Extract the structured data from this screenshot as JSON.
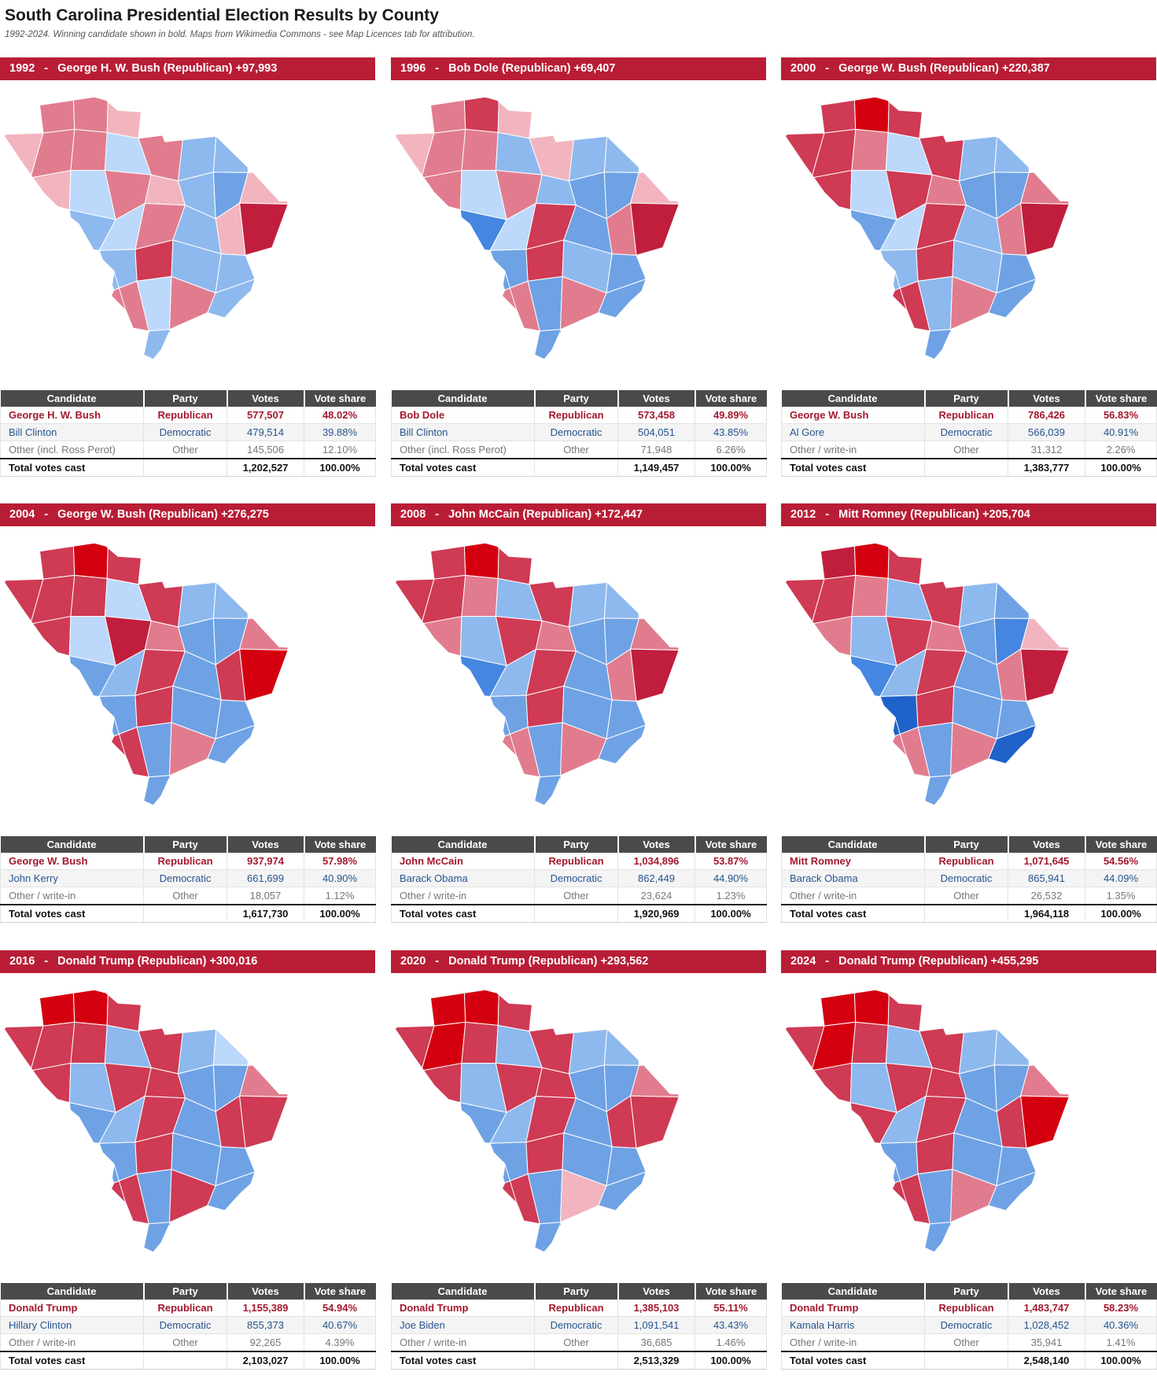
{
  "page": {
    "title": "South Carolina Presidential Election Results by County",
    "subtitle": "1992-2024. Winning candidate shown in bold. Maps from Wikimedia Commons - see Map Licences tab for attribution."
  },
  "table_headers": {
    "candidate": "Candidate",
    "party": "Party",
    "votes": "Votes",
    "share": "Vote share"
  },
  "colors": {
    "banner": "#b91d35",
    "header": "#4a4a4a",
    "rep_text": "#a3182d",
    "dem_text": "#27548f",
    "rep_scale": [
      "#f2b4be",
      "#e17c8e",
      "#cf3a54",
      "#c01e3c",
      "#d40010"
    ],
    "dem_scale": [
      "#bcd8fb",
      "#8db9ee",
      "#6ea2e5",
      "#4586e0",
      "#1f62c9"
    ]
  },
  "elections": [
    {
      "year": "1992",
      "sep": "-",
      "headline": "George H. W. Bush (Republican) +97,993",
      "map_shades": [
        "r2",
        "r2",
        "r1",
        "r1",
        "r2",
        "r2",
        "d1",
        "r2",
        "d2",
        "d2",
        "r1",
        "d1",
        "r2",
        "r1",
        "d2",
        "d3",
        "r1",
        "d2",
        "d1",
        "r2",
        "d2",
        "r1",
        "r4",
        "d2",
        "r3",
        "d2",
        "d2",
        "r2",
        "d1",
        "r2",
        "d2",
        "d2",
        "d1",
        "d2",
        "r2",
        "d3",
        "d1",
        "r1",
        "d2",
        "d2",
        "d1",
        "d2",
        "r1",
        "d2",
        "d2",
        "r1"
      ],
      "rows": [
        {
          "cls": "rep",
          "candidate": "George H. W. Bush",
          "party": "Republican",
          "votes": "577,507",
          "share": "48.02%"
        },
        {
          "cls": "dem",
          "candidate": "Bill Clinton",
          "party": "Democratic",
          "votes": "479,514",
          "share": "39.88%"
        },
        {
          "cls": "oth",
          "candidate": "Other (incl. Ross Perot)",
          "party": "Other",
          "votes": "145,506",
          "share": "12.10%"
        },
        {
          "cls": "tot",
          "candidate": "Total votes cast",
          "party": "",
          "votes": "1,202,527",
          "share": "100.00%"
        }
      ]
    },
    {
      "year": "1996",
      "sep": "-",
      "headline": "Bob Dole (Republican) +69,407",
      "map_shades": [
        "r2",
        "r3",
        "r1",
        "r1",
        "r2",
        "r2",
        "d2",
        "r1",
        "d2",
        "d2",
        "r2",
        "d1",
        "r2",
        "d2",
        "d3",
        "d3",
        "r1",
        "d4",
        "d1",
        "r3",
        "d3",
        "r2",
        "r4",
        "d3",
        "r3",
        "d2",
        "d3",
        "r2",
        "d3",
        "r2",
        "d3",
        "d3",
        "d2",
        "d3",
        "r2",
        "d4",
        "d3",
        "r2",
        "d2",
        "d3",
        "d2",
        "d3",
        "r2",
        "d3",
        "d2",
        "r1"
      ],
      "rows": [
        {
          "cls": "rep",
          "candidate": "Bob Dole",
          "party": "Republican",
          "votes": "573,458",
          "share": "49.89%"
        },
        {
          "cls": "dem",
          "candidate": "Bill Clinton",
          "party": "Democratic",
          "votes": "504,051",
          "share": "43.85%"
        },
        {
          "cls": "oth",
          "candidate": "Other (incl. Ross Perot)",
          "party": "Other",
          "votes": "71,948",
          "share": "6.26%"
        },
        {
          "cls": "tot",
          "candidate": "Total votes cast",
          "party": "",
          "votes": "1,149,457",
          "share": "100.00%"
        }
      ]
    },
    {
      "year": "2000",
      "sep": "-",
      "headline": "George W. Bush (Republican) +220,387",
      "map_shades": [
        "r3",
        "r5",
        "r3",
        "r3",
        "r3",
        "r2",
        "d1",
        "r3",
        "d2",
        "d2",
        "r3",
        "d1",
        "r3",
        "r2",
        "d3",
        "d3",
        "r2",
        "d3",
        "d1",
        "r3",
        "d2",
        "r2",
        "r4",
        "d2",
        "r3",
        "d2",
        "d3",
        "r3",
        "d2",
        "r2",
        "d3",
        "d3",
        "d2",
        "d2",
        "r2",
        "d4",
        "d3",
        "r2",
        "d2",
        "d2",
        "d1",
        "d2",
        "r2",
        "d3",
        "r4",
        "r2"
      ],
      "rows": [
        {
          "cls": "rep",
          "candidate": "George W. Bush",
          "party": "Republican",
          "votes": "786,426",
          "share": "56.83%"
        },
        {
          "cls": "dem",
          "candidate": "Al Gore",
          "party": "Democratic",
          "votes": "566,039",
          "share": "40.91%"
        },
        {
          "cls": "oth",
          "candidate": "Other / write-in",
          "party": "Other",
          "votes": "31,312",
          "share": "2.26%"
        },
        {
          "cls": "tot",
          "candidate": "Total votes cast",
          "party": "",
          "votes": "1,383,777",
          "share": "100.00%"
        }
      ]
    },
    {
      "year": "2004",
      "sep": "-",
      "headline": "George W. Bush (Republican) +276,275",
      "map_shades": [
        "r3",
        "r5",
        "r3",
        "r3",
        "r3",
        "r3",
        "d1",
        "r3",
        "d2",
        "d2",
        "r3",
        "d1",
        "r4",
        "r2",
        "d3",
        "d3",
        "r2",
        "d3",
        "d2",
        "r3",
        "d3",
        "r3",
        "r5",
        "d3",
        "r3",
        "d3",
        "d3",
        "r3",
        "d3",
        "r2",
        "d3",
        "d3",
        "d2",
        "d3",
        "r3",
        "d4",
        "d3",
        "r3",
        "d2",
        "d3",
        "d2",
        "d2",
        "r2",
        "d3",
        "r3",
        "r3"
      ],
      "rows": [
        {
          "cls": "rep",
          "candidate": "George W. Bush",
          "party": "Republican",
          "votes": "937,974",
          "share": "57.98%"
        },
        {
          "cls": "dem",
          "candidate": "John Kerry",
          "party": "Democratic",
          "votes": "661,699",
          "share": "40.90%"
        },
        {
          "cls": "oth",
          "candidate": "Other / write-in",
          "party": "Other",
          "votes": "18,057",
          "share": "1.12%"
        },
        {
          "cls": "tot",
          "candidate": "Total votes cast",
          "party": "",
          "votes": "1,617,730",
          "share": "100.00%"
        }
      ]
    },
    {
      "year": "2008",
      "sep": "-",
      "headline": "John McCain (Republican) +172,447",
      "map_shades": [
        "r3",
        "r5",
        "r3",
        "r3",
        "r3",
        "r2",
        "d2",
        "r3",
        "d2",
        "d2",
        "r2",
        "d2",
        "r3",
        "r2",
        "d3",
        "d3",
        "r2",
        "d4",
        "d2",
        "r3",
        "d3",
        "r2",
        "r4",
        "d3",
        "r3",
        "d3",
        "d3",
        "r2",
        "d3",
        "r2",
        "d3",
        "d3",
        "d1",
        "d3",
        "r2",
        "d4",
        "d3",
        "r2",
        "d2",
        "d3",
        "d2",
        "d3",
        "r2",
        "d3",
        "r3",
        "r3"
      ],
      "rows": [
        {
          "cls": "rep",
          "candidate": "John McCain",
          "party": "Republican",
          "votes": "1,034,896",
          "share": "53.87%"
        },
        {
          "cls": "dem",
          "candidate": "Barack Obama",
          "party": "Democratic",
          "votes": "862,449",
          "share": "44.90%"
        },
        {
          "cls": "oth",
          "candidate": "Other / write-in",
          "party": "Other",
          "votes": "23,624",
          "share": "1.23%"
        },
        {
          "cls": "tot",
          "candidate": "Total votes cast",
          "party": "",
          "votes": "1,920,969",
          "share": "100.00%"
        }
      ]
    },
    {
      "year": "2012",
      "sep": "-",
      "headline": "Mitt Romney (Republican) +205,704",
      "map_shades": [
        "r4",
        "r5",
        "r3",
        "r3",
        "r3",
        "r2",
        "d2",
        "r3",
        "d2",
        "d3",
        "r2",
        "d2",
        "r3",
        "r2",
        "d3",
        "d4",
        "r1",
        "d4",
        "d2",
        "r3",
        "d3",
        "r2",
        "r4",
        "d5",
        "r3",
        "d3",
        "d3",
        "r2",
        "d3",
        "r2",
        "d5",
        "d3",
        "d1",
        "d3",
        "r2",
        "d5",
        "d3",
        "r2",
        "d2",
        "d3",
        "d2",
        "d3",
        "r2",
        "d3",
        "r3",
        "r3"
      ],
      "rows": [
        {
          "cls": "rep",
          "candidate": "Mitt Romney",
          "party": "Republican",
          "votes": "1,071,645",
          "share": "54.56%"
        },
        {
          "cls": "dem",
          "candidate": "Barack Obama",
          "party": "Democratic",
          "votes": "865,941",
          "share": "44.09%"
        },
        {
          "cls": "oth",
          "candidate": "Other / write-in",
          "party": "Other",
          "votes": "26,532",
          "share": "1.35%"
        },
        {
          "cls": "tot",
          "candidate": "Total votes cast",
          "party": "",
          "votes": "1,964,118",
          "share": "100.00%"
        }
      ]
    },
    {
      "year": "2016",
      "sep": "-",
      "headline": "Donald Trump (Republican) +300,016",
      "map_shades": [
        "r5",
        "r5",
        "r3",
        "r3",
        "r3",
        "r3",
        "d2",
        "r3",
        "d2",
        "d1",
        "r3",
        "d2",
        "r3",
        "r3",
        "d3",
        "d3",
        "r2",
        "d3",
        "d2",
        "r3",
        "d3",
        "r3",
        "r3",
        "d3",
        "r3",
        "d3",
        "d3",
        "r3",
        "d3",
        "r3",
        "d3",
        "d3",
        "d2",
        "d3",
        "r3",
        "d5",
        "d3",
        "r3",
        "d2",
        "d3",
        "d2",
        "d3",
        "r2",
        "d3",
        "r3",
        "r3"
      ],
      "rows": [
        {
          "cls": "rep",
          "candidate": "Donald Trump",
          "party": "Republican",
          "votes": "1,155,389",
          "share": "54.94%"
        },
        {
          "cls": "dem",
          "candidate": "Hillary Clinton",
          "party": "Democratic",
          "votes": "855,373",
          "share": "40.67%"
        },
        {
          "cls": "oth",
          "candidate": "Other / write-in",
          "party": "Other",
          "votes": "92,265",
          "share": "4.39%"
        },
        {
          "cls": "tot",
          "candidate": "Total votes cast",
          "party": "",
          "votes": "2,103,027",
          "share": "100.00%"
        }
      ]
    },
    {
      "year": "2020",
      "sep": "-",
      "headline": "Donald Trump (Republican) +293,562",
      "map_shades": [
        "r5",
        "r5",
        "r3",
        "r3",
        "r5",
        "r3",
        "d2",
        "r3",
        "d2",
        "d2",
        "r3",
        "d2",
        "r3",
        "r3",
        "d3",
        "d3",
        "r2",
        "d3",
        "d2",
        "r3",
        "d3",
        "r3",
        "r3",
        "d3",
        "r3",
        "d3",
        "d3",
        "r3",
        "d3",
        "r1",
        "d3",
        "d3",
        "d1",
        "d3",
        "r3",
        "d5",
        "d3",
        "r3",
        "d2",
        "d3",
        "d2",
        "d3",
        "r2",
        "d3",
        "r3",
        "r3"
      ],
      "rows": [
        {
          "cls": "rep",
          "candidate": "Donald Trump",
          "party": "Republican",
          "votes": "1,385,103",
          "share": "55.11%"
        },
        {
          "cls": "dem",
          "candidate": "Joe Biden",
          "party": "Democratic",
          "votes": "1,091,541",
          "share": "43.43%"
        },
        {
          "cls": "oth",
          "candidate": "Other / write-in",
          "party": "Other",
          "votes": "36,685",
          "share": "1.46%"
        },
        {
          "cls": "tot",
          "candidate": "Total votes cast",
          "party": "",
          "votes": "2,513,329",
          "share": "100.00%"
        }
      ]
    },
    {
      "year": "2024",
      "sep": "-",
      "headline": "Donald Trump (Republican) +455,295",
      "map_shades": [
        "r5",
        "r5",
        "r3",
        "r3",
        "r5",
        "r3",
        "d2",
        "r3",
        "d2",
        "d2",
        "r3",
        "d2",
        "r3",
        "r3",
        "d3",
        "d3",
        "r2",
        "r3",
        "d2",
        "r3",
        "d3",
        "r3",
        "r5",
        "d3",
        "r3",
        "d3",
        "d3",
        "r3",
        "d3",
        "r2",
        "d3",
        "d3",
        "r2",
        "d3",
        "r3",
        "d5",
        "d2",
        "r3",
        "d2",
        "d3",
        "d2",
        "d2",
        "r3",
        "d2",
        "r3",
        "r3"
      ],
      "rows": [
        {
          "cls": "rep",
          "candidate": "Donald Trump",
          "party": "Republican",
          "votes": "1,483,747",
          "share": "58.23%"
        },
        {
          "cls": "dem",
          "candidate": "Kamala Harris",
          "party": "Democratic",
          "votes": "1,028,452",
          "share": "40.36%"
        },
        {
          "cls": "oth",
          "candidate": "Other / write-in",
          "party": "Other",
          "votes": "35,941",
          "share": "1.41%"
        },
        {
          "cls": "tot",
          "candidate": "Total votes cast",
          "party": "",
          "votes": "2,548,140",
          "share": "100.00%"
        }
      ]
    }
  ]
}
